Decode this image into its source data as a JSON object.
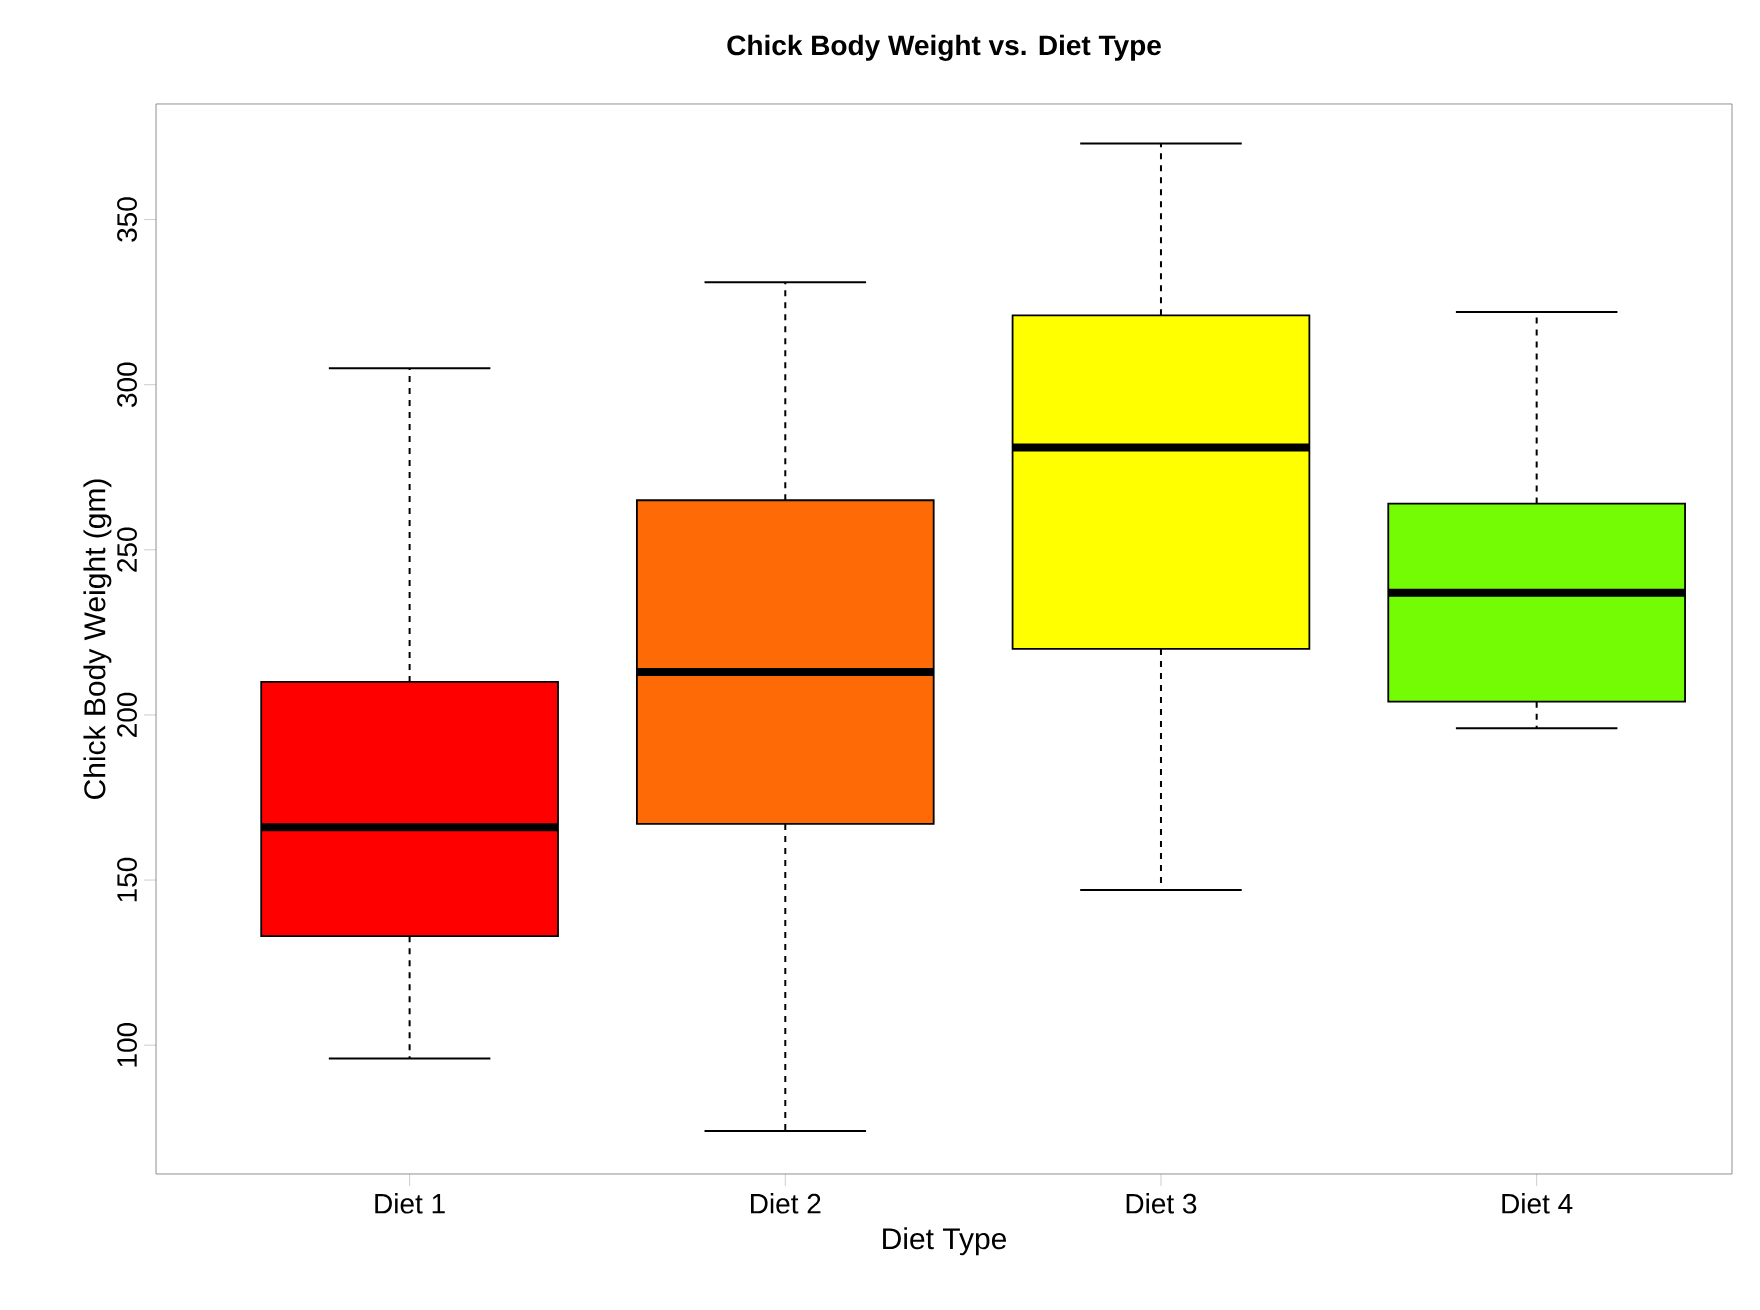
{
  "chart_data": {
    "type": "box",
    "title": "Chick Body Weight vs. Diet Type",
    "xlabel": "Diet Type",
    "ylabel": "Chick Body Weight (gm)",
    "categories": [
      "Diet 1",
      "Diet 2",
      "Diet 3",
      "Diet 4"
    ],
    "colors": [
      "#ff0000",
      "#fd6a06",
      "#ffff00",
      "#74fc04"
    ],
    "boxes": [
      {
        "low": 96,
        "q1": 133,
        "median": 166,
        "q3": 210,
        "high": 305
      },
      {
        "low": 74,
        "q1": 167,
        "median": 213,
        "q3": 265,
        "high": 331
      },
      {
        "low": 147,
        "q1": 220,
        "median": 281,
        "q3": 321,
        "high": 373
      },
      {
        "low": 196,
        "q1": 204,
        "median": 237,
        "q3": 264,
        "high": 322
      }
    ],
    "ylim": [
      61,
      385
    ],
    "yticks": [
      100,
      150,
      200,
      250,
      300,
      350
    ],
    "grid": false
  }
}
